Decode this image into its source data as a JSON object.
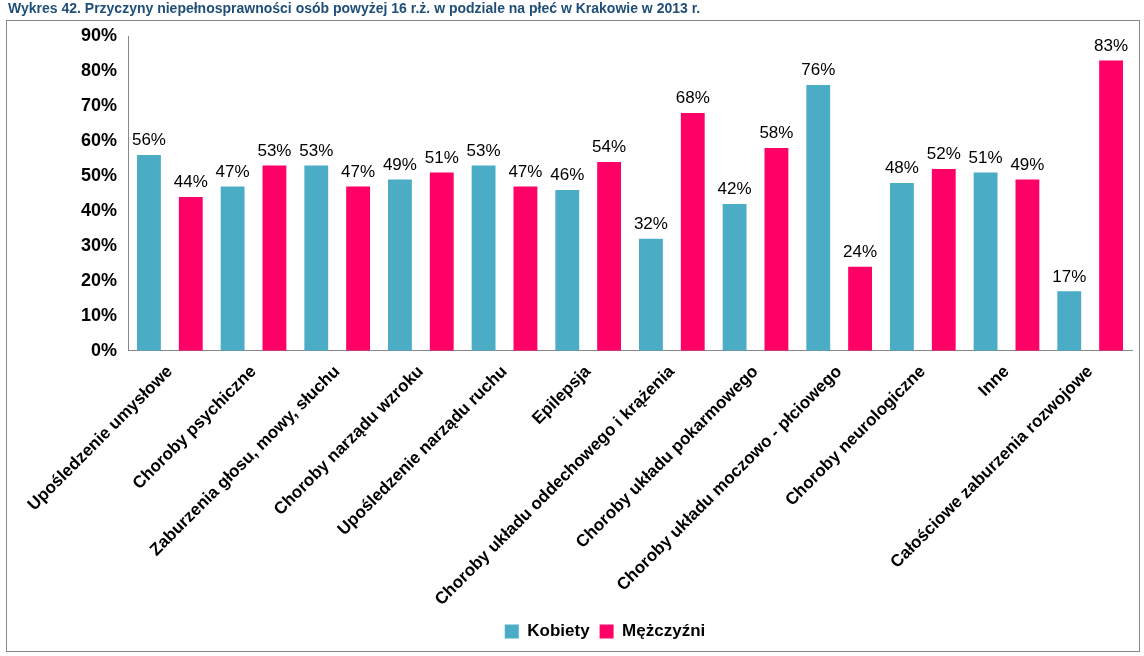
{
  "chart_data": {
    "type": "bar",
    "title": "Wykres 42. Przyczyny niepełnosprawności osób powyżej 16 r.ż. w podziale na płeć w Krakowie w 2013 r.",
    "categories": [
      "Upośledzenie umysłowe",
      "Choroby psychiczne",
      "Zaburzenia głosu, mowy, słuchu",
      "Choroby narządu wzroku",
      "Upośledzenie narządu ruchu",
      "Epilepsja",
      "Choroby układu oddechowego i krążenia",
      "Choroby układu pokarmowego",
      "Choroby układu moczowo - płciowego",
      "Choroby neurologiczne",
      "Inne",
      "Całościowe zaburzenia rozwojowe"
    ],
    "series": [
      {
        "name": "Kobiety",
        "color": "#4bacc6",
        "values": [
          56,
          47,
          53,
          49,
          53,
          46,
          32,
          42,
          76,
          48,
          51,
          17
        ],
        "value_labels": [
          "56%",
          "47%",
          "53%",
          "49%",
          "53%",
          "46%",
          "32%",
          "42%",
          "76%",
          "48%",
          "51%",
          "17%"
        ]
      },
      {
        "name": "Mężczyźni",
        "color": "#ff0066",
        "values": [
          44,
          53,
          47,
          51,
          47,
          54,
          68,
          58,
          24,
          52,
          49,
          83
        ],
        "value_labels": [
          "44%",
          "53%",
          "47%",
          "51%",
          "47%",
          "54%",
          "68%",
          "58%",
          "24%",
          "52%",
          "49%",
          "83%"
        ]
      }
    ],
    "ylim": [
      0,
      90
    ],
    "yticks": [
      {
        "value": 0,
        "label": "0%"
      },
      {
        "value": 10,
        "label": "10%"
      },
      {
        "value": 20,
        "label": "20%"
      },
      {
        "value": 30,
        "label": "30%"
      },
      {
        "value": 40,
        "label": "40%"
      },
      {
        "value": 50,
        "label": "50%"
      },
      {
        "value": 60,
        "label": "60%"
      },
      {
        "value": 70,
        "label": "70%"
      },
      {
        "value": 80,
        "label": "80%"
      },
      {
        "value": 90,
        "label": "90%"
      }
    ],
    "grid": false,
    "legend": "bottom"
  }
}
